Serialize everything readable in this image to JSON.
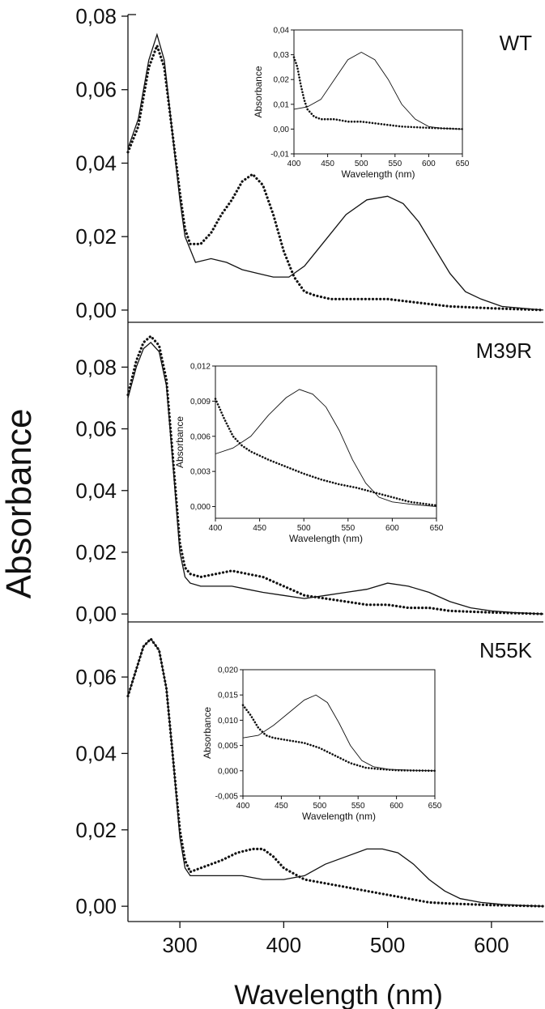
{
  "figure": {
    "ylabel": "Absorbance",
    "xlabel": "Wavelength (nm)",
    "x_ticks": [
      300,
      400,
      500,
      600
    ]
  },
  "chart_data": [
    {
      "type": "line",
      "panel_label": "WT",
      "xlim": [
        250,
        650
      ],
      "ylim": [
        -0.002,
        0.08
      ],
      "y_ticks": [
        "0,00",
        "0,02",
        "0,04",
        "0,06",
        "0,08"
      ],
      "series": [
        {
          "style": "solid",
          "x": [
            250,
            260,
            270,
            278,
            285,
            292,
            300,
            305,
            315,
            330,
            345,
            360,
            375,
            390,
            405,
            420,
            440,
            460,
            480,
            500,
            515,
            530,
            545,
            560,
            575,
            590,
            610,
            630,
            650
          ],
          "y": [
            0.044,
            0.052,
            0.068,
            0.075,
            0.068,
            0.05,
            0.03,
            0.02,
            0.013,
            0.014,
            0.013,
            0.011,
            0.01,
            0.009,
            0.009,
            0.012,
            0.019,
            0.026,
            0.03,
            0.031,
            0.029,
            0.024,
            0.017,
            0.01,
            0.005,
            0.003,
            0.001,
            0.0005,
            0.0
          ]
        },
        {
          "style": "dotted",
          "x": [
            250,
            260,
            270,
            278,
            285,
            292,
            300,
            305,
            310,
            320,
            330,
            340,
            350,
            360,
            370,
            380,
            390,
            400,
            410,
            420,
            430,
            445,
            460,
            480,
            500,
            530,
            560,
            600,
            650
          ],
          "y": [
            0.043,
            0.05,
            0.066,
            0.072,
            0.066,
            0.05,
            0.032,
            0.022,
            0.018,
            0.018,
            0.021,
            0.026,
            0.03,
            0.035,
            0.037,
            0.034,
            0.026,
            0.016,
            0.009,
            0.005,
            0.004,
            0.003,
            0.003,
            0.003,
            0.003,
            0.002,
            0.001,
            0.0005,
            0.0
          ]
        }
      ],
      "inset": {
        "xlabel": "Wavelength (nm)",
        "ylabel": "Absorbance",
        "xlim": [
          400,
          650
        ],
        "ylim": [
          -0.01,
          0.04
        ],
        "x_ticks": [
          400,
          450,
          500,
          550,
          600,
          650
        ],
        "y_ticks": [
          "-0,01",
          "0,00",
          "0,01",
          "0,02",
          "0,03",
          "0,04"
        ],
        "series": [
          {
            "style": "solid",
            "x": [
              400,
              420,
              440,
              460,
              480,
              500,
              520,
              540,
              560,
              580,
              600,
              620,
              650
            ],
            "y": [
              0.008,
              0.009,
              0.012,
              0.02,
              0.028,
              0.031,
              0.028,
              0.02,
              0.01,
              0.004,
              0.001,
              0.0003,
              0.0
            ]
          },
          {
            "style": "dotted",
            "x": [
              400,
              405,
              410,
              415,
              420,
              430,
              440,
              460,
              480,
              500,
              530,
              560,
              600,
              650
            ],
            "y": [
              0.029,
              0.025,
              0.018,
              0.012,
              0.008,
              0.005,
              0.004,
              0.004,
              0.003,
              0.003,
              0.002,
              0.001,
              0.0005,
              0.0
            ]
          }
        ]
      }
    },
    {
      "type": "line",
      "panel_label": "M39R",
      "xlim": [
        250,
        650
      ],
      "ylim": [
        -0.001,
        0.094
      ],
      "y_ticks": [
        "0,00",
        "0,02",
        "0,04",
        "0,06",
        "0,08"
      ],
      "series": [
        {
          "style": "solid",
          "x": [
            250,
            258,
            265,
            272,
            280,
            287,
            293,
            300,
            305,
            310,
            320,
            335,
            350,
            365,
            380,
            400,
            420,
            440,
            460,
            480,
            500,
            520,
            540,
            560,
            580,
            600,
            620,
            650
          ],
          "y": [
            0.07,
            0.08,
            0.086,
            0.088,
            0.085,
            0.074,
            0.05,
            0.02,
            0.012,
            0.01,
            0.009,
            0.009,
            0.009,
            0.008,
            0.007,
            0.006,
            0.005,
            0.006,
            0.007,
            0.008,
            0.01,
            0.009,
            0.007,
            0.004,
            0.002,
            0.001,
            0.0005,
            0.0
          ]
        },
        {
          "style": "dotted",
          "x": [
            250,
            258,
            265,
            272,
            280,
            287,
            293,
            300,
            305,
            310,
            320,
            335,
            350,
            365,
            380,
            400,
            420,
            440,
            460,
            480,
            500,
            520,
            540,
            560,
            600,
            650
          ],
          "y": [
            0.071,
            0.082,
            0.088,
            0.09,
            0.087,
            0.076,
            0.052,
            0.023,
            0.015,
            0.013,
            0.012,
            0.013,
            0.014,
            0.013,
            0.012,
            0.009,
            0.006,
            0.005,
            0.004,
            0.003,
            0.003,
            0.002,
            0.002,
            0.001,
            0.0005,
            0.0
          ]
        }
      ],
      "inset": {
        "xlabel": "Wavelength (nm)",
        "ylabel": "Absorbance",
        "xlim": [
          400,
          650
        ],
        "ylim": [
          -0.001,
          0.012
        ],
        "x_ticks": [
          400,
          450,
          500,
          550,
          600,
          650
        ],
        "y_ticks": [
          "0,000",
          "0,003",
          "0,006",
          "0,009",
          "0,012"
        ],
        "series": [
          {
            "style": "solid",
            "x": [
              400,
              420,
              440,
              460,
              480,
              495,
              510,
              525,
              540,
              555,
              570,
              585,
              600,
              620,
              650
            ],
            "y": [
              0.0045,
              0.005,
              0.006,
              0.0078,
              0.0093,
              0.01,
              0.0096,
              0.0085,
              0.0065,
              0.004,
              0.002,
              0.0008,
              0.0004,
              0.0002,
              0.0
            ]
          },
          {
            "style": "dotted",
            "x": [
              400,
              410,
              420,
              430,
              440,
              460,
              480,
              500,
              520,
              540,
              560,
              580,
              600,
              620,
              650
            ],
            "y": [
              0.0092,
              0.0075,
              0.006,
              0.0052,
              0.0047,
              0.004,
              0.0034,
              0.0028,
              0.0023,
              0.0019,
              0.0016,
              0.0012,
              0.0008,
              0.0004,
              0.0001
            ]
          }
        ]
      }
    },
    {
      "type": "line",
      "panel_label": "N55K",
      "xlim": [
        250,
        650
      ],
      "ylim": [
        -0.004,
        0.074
      ],
      "y_ticks": [
        "0,00",
        "0,02",
        "0,04",
        "0,06"
      ],
      "series": [
        {
          "style": "solid",
          "x": [
            250,
            258,
            265,
            272,
            280,
            287,
            293,
            300,
            305,
            310,
            320,
            340,
            360,
            380,
            400,
            420,
            440,
            460,
            480,
            495,
            510,
            525,
            540,
            555,
            570,
            590,
            610,
            630,
            650
          ],
          "y": [
            0.055,
            0.062,
            0.068,
            0.07,
            0.067,
            0.057,
            0.04,
            0.018,
            0.01,
            0.008,
            0.008,
            0.008,
            0.008,
            0.007,
            0.007,
            0.008,
            0.011,
            0.013,
            0.015,
            0.015,
            0.014,
            0.011,
            0.007,
            0.004,
            0.002,
            0.001,
            0.0005,
            0.0002,
            0.0
          ]
        },
        {
          "style": "dotted",
          "x": [
            250,
            258,
            265,
            272,
            280,
            287,
            293,
            300,
            305,
            310,
            320,
            340,
            355,
            370,
            380,
            390,
            400,
            420,
            440,
            460,
            480,
            500,
            520,
            540,
            560,
            600,
            650
          ],
          "y": [
            0.055,
            0.062,
            0.068,
            0.07,
            0.067,
            0.057,
            0.04,
            0.02,
            0.012,
            0.009,
            0.01,
            0.012,
            0.014,
            0.015,
            0.015,
            0.013,
            0.01,
            0.007,
            0.006,
            0.005,
            0.004,
            0.003,
            0.002,
            0.001,
            0.0007,
            0.0003,
            0.0
          ]
        }
      ],
      "inset": {
        "xlabel": "Wavelength (nm)",
        "ylabel": "Absorbance",
        "xlim": [
          400,
          650
        ],
        "ylim": [
          -0.005,
          0.02
        ],
        "x_ticks": [
          400,
          450,
          500,
          550,
          600,
          650
        ],
        "y_ticks": [
          "-0,005",
          "0,000",
          "0,005",
          "0,010",
          "0,015",
          "0,020"
        ],
        "series": [
          {
            "style": "solid",
            "x": [
              400,
              420,
              440,
              460,
              480,
              495,
              510,
              525,
              540,
              555,
              570,
              590,
              620,
              650
            ],
            "y": [
              0.0065,
              0.007,
              0.009,
              0.0115,
              0.014,
              0.015,
              0.0135,
              0.0095,
              0.005,
              0.002,
              0.0008,
              0.0003,
              0.0001,
              0.0
            ]
          },
          {
            "style": "dotted",
            "x": [
              400,
              410,
              420,
              430,
              440,
              460,
              480,
              500,
              520,
              540,
              560,
              580,
              600,
              650
            ],
            "y": [
              0.013,
              0.011,
              0.0085,
              0.007,
              0.0065,
              0.006,
              0.0055,
              0.0045,
              0.003,
              0.0015,
              0.0006,
              0.0003,
              0.0001,
              0.0
            ]
          }
        ]
      }
    }
  ]
}
